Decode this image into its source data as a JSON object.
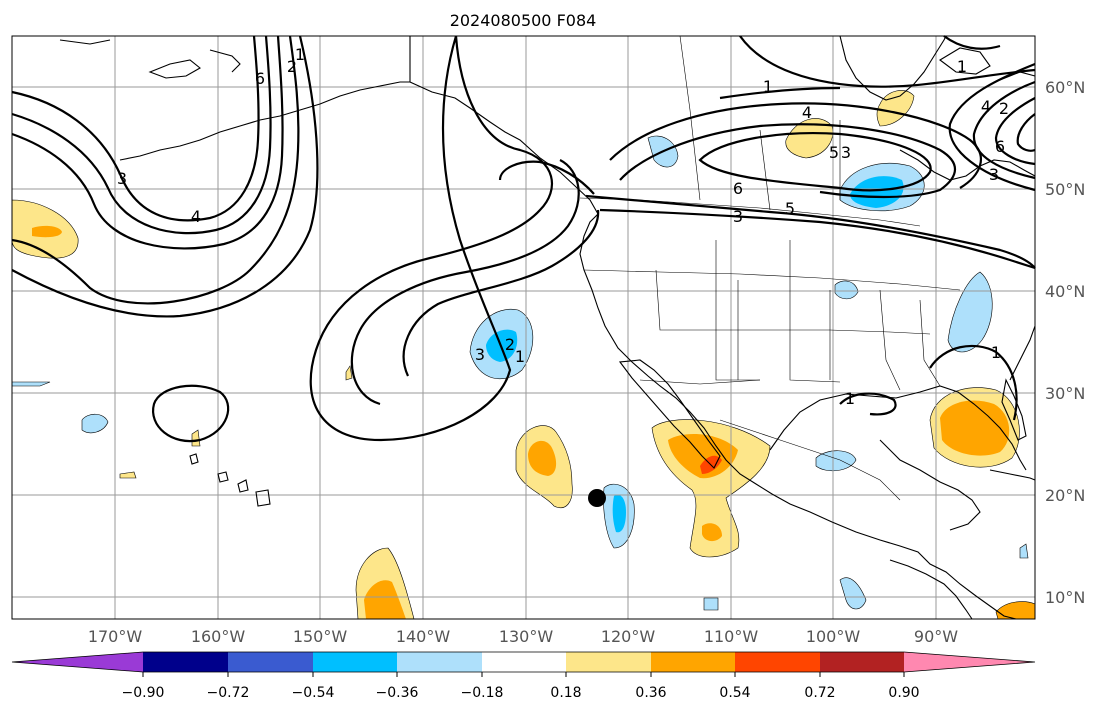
{
  "title": "2024080500 F084",
  "longitude_labels": [
    "170°W",
    "160°W",
    "150°W",
    "140°W",
    "130°W",
    "120°W",
    "110°W",
    "100°W",
    "90°W"
  ],
  "latitude_labels": [
    "60°N",
    "50°N",
    "40°N",
    "30°N",
    "20°N",
    "10°N"
  ],
  "colorbar": {
    "tick_labels": [
      "−0.90",
      "−0.72",
      "−0.54",
      "−0.36",
      "−0.18",
      "0.18",
      "0.36",
      "0.54",
      "0.72",
      "0.90"
    ],
    "colors": [
      "#9a3ad6",
      "#00008b",
      "#3a5bd0",
      "#00bfff",
      "#aee0fb",
      "#ffffff",
      "#fde68a",
      "#ffa500",
      "#ff4500",
      "#b22222",
      "#ff88b0"
    ],
    "extend": "both"
  },
  "contour_labels": [
    "1",
    "2",
    "3",
    "4",
    "5",
    "6",
    "3",
    "2",
    "1",
    "3",
    "4",
    "2",
    "1",
    "6",
    "5",
    "3",
    "1",
    "1",
    "3",
    "6",
    "4",
    "1"
  ],
  "colors": {
    "contour": "#000000",
    "grid": "#9a9a9a",
    "tick_label": "#555555"
  }
}
